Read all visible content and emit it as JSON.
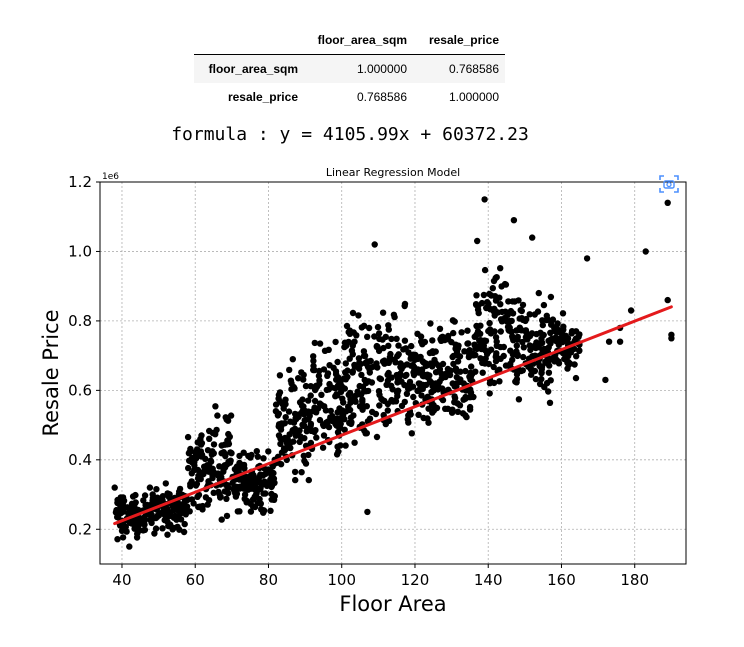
{
  "table": {
    "columns": [
      "floor_area_sqm",
      "resale_price"
    ],
    "rows": [
      {
        "label": "floor_area_sqm",
        "values": [
          "1.000000",
          "0.768586"
        ]
      },
      {
        "label": "resale_price",
        "values": [
          "0.768586",
          "1.000000"
        ]
      }
    ]
  },
  "formula": "formula : y = 4105.99x + 60372.23",
  "icons": {
    "copy": "camera-icon",
    "accent": "#4d90fe"
  },
  "chart_data": {
    "type": "scatter",
    "title": "Linear Regression Model",
    "xlabel": "Floor Area",
    "ylabel": "Resale Price",
    "y_scale_label": "1e6",
    "xlim": [
      34,
      194
    ],
    "ylim": [
      0.1,
      1.2
    ],
    "xticks": [
      40,
      60,
      80,
      100,
      120,
      140,
      160,
      180
    ],
    "yticks": [
      0.2,
      0.4,
      0.6,
      0.8,
      1.0,
      1.2
    ],
    "xtick_labels": [
      "40",
      "60",
      "80",
      "100",
      "120",
      "140",
      "160",
      "180"
    ],
    "ytick_labels": [
      "0.2",
      "0.4",
      "0.6",
      "0.8",
      "1.0",
      "1.2"
    ],
    "grid": true,
    "point_color": "#000000",
    "line_color": "#e41a1c",
    "clusters": [
      {
        "x_min": 38,
        "x_max": 46,
        "y_low": 0.15,
        "y_high": 0.32
      },
      {
        "x_min": 46,
        "x_max": 58,
        "y_low": 0.17,
        "y_high": 0.35
      },
      {
        "x_min": 58,
        "x_max": 64,
        "y_low": 0.18,
        "y_high": 0.55
      },
      {
        "x_min": 64,
        "x_max": 70,
        "y_low": 0.2,
        "y_high": 0.6
      },
      {
        "x_min": 70,
        "x_max": 82,
        "y_low": 0.22,
        "y_high": 0.45
      },
      {
        "x_min": 82,
        "x_max": 92,
        "y_low": 0.28,
        "y_high": 0.72
      },
      {
        "x_min": 92,
        "x_max": 100,
        "y_low": 0.3,
        "y_high": 0.8
      },
      {
        "x_min": 100,
        "x_max": 112,
        "y_low": 0.33,
        "y_high": 0.92
      },
      {
        "x_min": 112,
        "x_max": 122,
        "y_low": 0.4,
        "y_high": 0.88
      },
      {
        "x_min": 122,
        "x_max": 136,
        "y_low": 0.45,
        "y_high": 0.85
      },
      {
        "x_min": 136,
        "x_max": 150,
        "y_low": 0.5,
        "y_high": 1.02
      },
      {
        "x_min": 150,
        "x_max": 158,
        "y_low": 0.52,
        "y_high": 0.92
      },
      {
        "x_min": 158,
        "x_max": 165,
        "y_low": 0.62,
        "y_high": 0.85
      }
    ],
    "outliers": [
      {
        "x": 139,
        "y": 1.15
      },
      {
        "x": 147,
        "y": 1.09
      },
      {
        "x": 152,
        "y": 1.04
      },
      {
        "x": 109,
        "y": 1.02
      },
      {
        "x": 137,
        "y": 1.03
      },
      {
        "x": 183,
        "y": 1.0
      },
      {
        "x": 189,
        "y": 1.14
      },
      {
        "x": 189,
        "y": 0.86
      },
      {
        "x": 190,
        "y": 0.76
      },
      {
        "x": 190,
        "y": 0.75
      },
      {
        "x": 172,
        "y": 0.63
      },
      {
        "x": 179,
        "y": 0.83
      },
      {
        "x": 176,
        "y": 0.78
      },
      {
        "x": 176,
        "y": 0.74
      },
      {
        "x": 173,
        "y": 0.74
      },
      {
        "x": 167,
        "y": 0.98
      },
      {
        "x": 107,
        "y": 0.25
      },
      {
        "x": 38,
        "y": 0.32
      },
      {
        "x": 42,
        "y": 0.15
      }
    ],
    "regression": {
      "slope": 4105.99,
      "intercept": 60372.23,
      "x_start": 38,
      "x_end": 190
    }
  }
}
